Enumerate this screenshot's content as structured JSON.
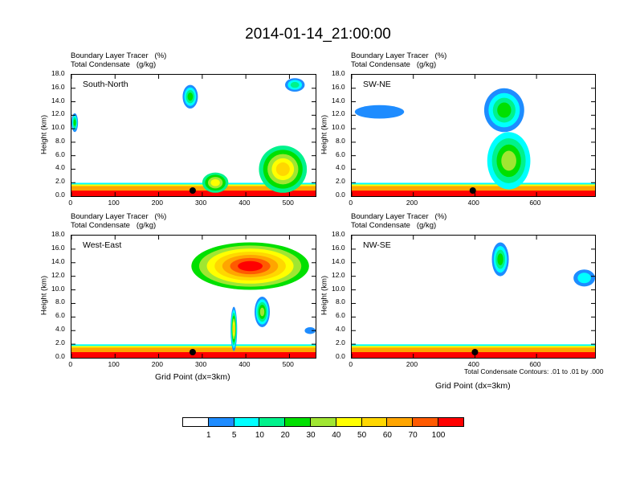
{
  "title": "2014-01-14_21:00:00",
  "subtitle_line1": "Boundary Layer Tracer   (%)",
  "subtitle_line2": "Total Condensate   (g/kg)",
  "ylabel": "Height (km)",
  "xlabel": "Grid Point (dx=3km)",
  "contour_note": "Total Condensate Contours: .01 to .01 by .000",
  "y_ticks": [
    "0.0",
    "2.0",
    "4.0",
    "6.0",
    "8.0",
    "10.0",
    "12.0",
    "14.0",
    "16.0",
    "18.0"
  ],
  "colorbar": {
    "colors": [
      "#ffffff",
      "#1e8cff",
      "#00ffff",
      "#00f28c",
      "#00e000",
      "#a0e632",
      "#ffff00",
      "#ffd700",
      "#ffa500",
      "#ff5a00",
      "#ff0000"
    ],
    "labels": [
      "1",
      "5",
      "10",
      "20",
      "30",
      "40",
      "50",
      "60",
      "70",
      "100"
    ]
  },
  "chart_data": [
    {
      "type": "heatmap",
      "name": "South-North",
      "title": "South-North",
      "xlabel": "",
      "ylabel": "Height (km)",
      "xlim": [
        0,
        560
      ],
      "ylim": [
        0,
        18
      ],
      "x_ticks": [
        "0",
        "100",
        "200",
        "300",
        "400",
        "500"
      ],
      "x_tick_values": [
        0,
        100,
        200,
        300,
        400,
        500
      ],
      "marker_x": 278,
      "features": [
        {
          "x": [
            0,
            560
          ],
          "z": [
            0,
            1.5
          ],
          "level": "70-100"
        },
        {
          "x": [
            0,
            15
          ],
          "z": [
            9.5,
            12.3
          ],
          "level": "5-30"
        },
        {
          "x": [
            255,
            290
          ],
          "z": [
            13,
            16.5
          ],
          "level": "5-30"
        },
        {
          "x": [
            490,
            535
          ],
          "z": [
            15.5,
            17.5
          ],
          "level": "5-20"
        },
        {
          "x": [
            300,
            360
          ],
          "z": [
            0.5,
            3.5
          ],
          "level": "20-50"
        },
        {
          "x": [
            430,
            540
          ],
          "z": [
            0.5,
            7.5
          ],
          "level": "20-60"
        }
      ]
    },
    {
      "type": "heatmap",
      "name": "SW-NE",
      "title": "SW-NE",
      "xlabel": "",
      "ylabel": "Height (km)",
      "xlim": [
        0,
        790
      ],
      "ylim": [
        0,
        18
      ],
      "x_ticks": [
        "0",
        "200",
        "400",
        "600"
      ],
      "x_tick_values": [
        0,
        200,
        400,
        600
      ],
      "marker_x": 393,
      "features": [
        {
          "x": [
            0,
            790
          ],
          "z": [
            0,
            1.5
          ],
          "level": "70-100"
        },
        {
          "x": [
            10,
            170
          ],
          "z": [
            11.5,
            13.5
          ],
          "level": "1-5"
        },
        {
          "x": [
            430,
            560
          ],
          "z": [
            9.5,
            16
          ],
          "level": "5-30"
        },
        {
          "x": [
            440,
            580
          ],
          "z": [
            1,
            9.5
          ],
          "level": "10-40"
        }
      ]
    },
    {
      "type": "heatmap",
      "name": "West-East",
      "title": "West-East",
      "xlabel": "Grid Point (dx=3km)",
      "ylabel": "Height (km)",
      "xlim": [
        0,
        560
      ],
      "ylim": [
        0,
        18
      ],
      "x_ticks": [
        "0",
        "100",
        "200",
        "300",
        "400",
        "500"
      ],
      "x_tick_values": [
        0,
        100,
        200,
        300,
        400,
        500
      ],
      "marker_x": 278,
      "features": [
        {
          "x": [
            0,
            560
          ],
          "z": [
            0,
            1.5
          ],
          "level": "70-100"
        },
        {
          "x": [
            275,
            545
          ],
          "z": [
            10,
            17
          ],
          "level": "30-100"
        },
        {
          "x": [
            365,
            380
          ],
          "z": [
            1,
            7.5
          ],
          "level": "5-60"
        },
        {
          "x": [
            420,
            455
          ],
          "z": [
            4.5,
            9
          ],
          "level": "5-40"
        },
        {
          "x": [
            535,
            560
          ],
          "z": [
            3.5,
            4.5
          ],
          "level": "1-5"
        }
      ]
    },
    {
      "type": "heatmap",
      "name": "NW-SE",
      "title": "NW-SE",
      "xlabel": "Grid Point (dx=3km)",
      "ylabel": "Height (km)",
      "xlim": [
        0,
        790
      ],
      "ylim": [
        0,
        18
      ],
      "x_ticks": [
        "0",
        "200",
        "400",
        "600"
      ],
      "x_tick_values": [
        0,
        200,
        400,
        600
      ],
      "marker_x": 400,
      "features": [
        {
          "x": [
            0,
            790
          ],
          "z": [
            0,
            1.5
          ],
          "level": "70-100"
        },
        {
          "x": [
            455,
            510
          ],
          "z": [
            12,
            17
          ],
          "level": "5-30"
        },
        {
          "x": [
            720,
            790
          ],
          "z": [
            10.5,
            13
          ],
          "level": "1-10"
        }
      ]
    }
  ]
}
